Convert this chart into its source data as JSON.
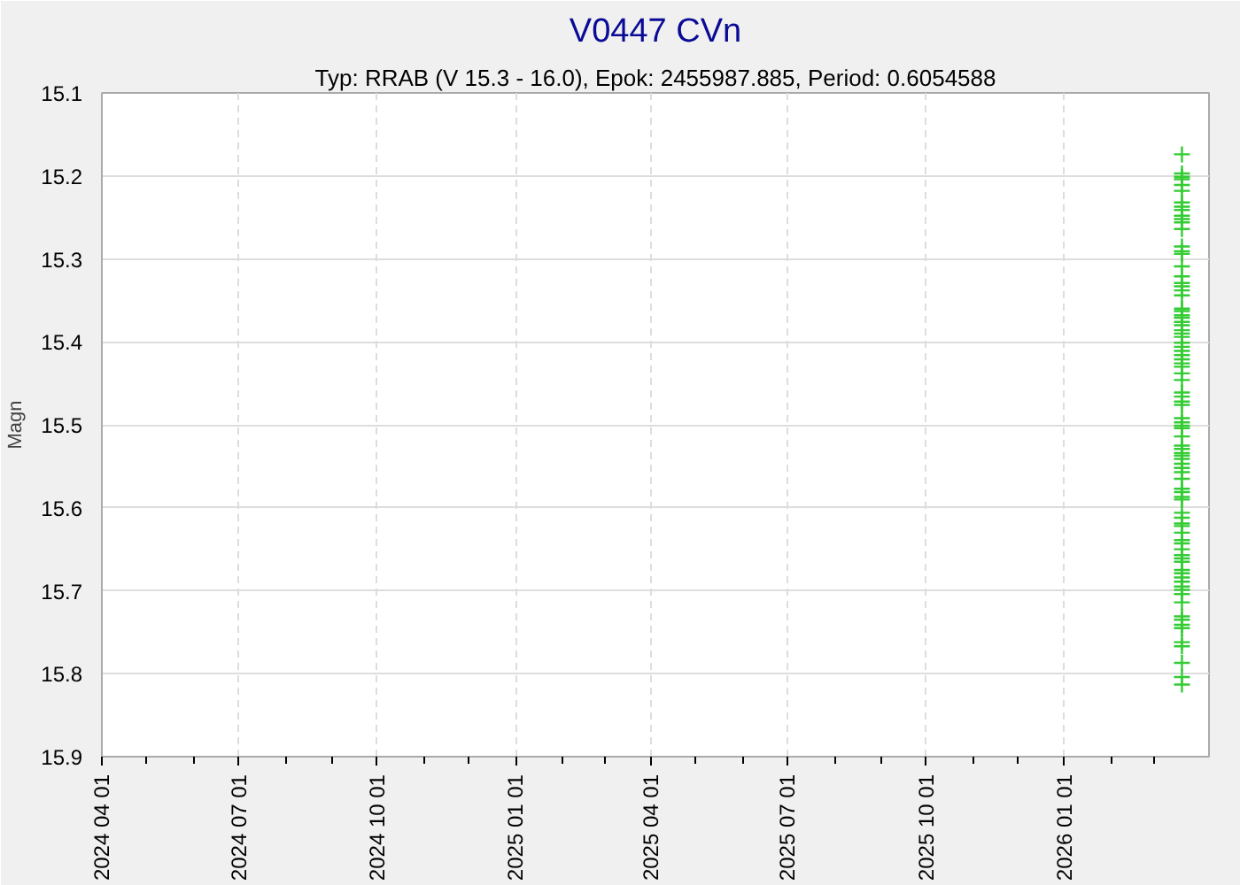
{
  "chart_data": {
    "type": "scatter",
    "title": "V0447 CVn",
    "subtitle": "Typ: RRAB (V 15.3 - 16.0), Epok: 2455987.885, Period: 0.6054588",
    "ylabel": "Magn",
    "marker": "cross",
    "grid": true,
    "xlim": [
      "2024-04-01",
      "2026-04-07"
    ],
    "xticks": [
      {
        "value": "2024-04-01",
        "label": "2024 04 01"
      },
      {
        "value": "2024-05-01",
        "label": null
      },
      {
        "value": "2024-06-01",
        "label": null
      },
      {
        "value": "2024-07-01",
        "label": "2024 07 01"
      },
      {
        "value": "2024-08-01",
        "label": null
      },
      {
        "value": "2024-09-01",
        "label": null
      },
      {
        "value": "2024-10-01",
        "label": "2024 10 01"
      },
      {
        "value": "2024-11-01",
        "label": null
      },
      {
        "value": "2024-12-01",
        "label": null
      },
      {
        "value": "2025-01-01",
        "label": "2025 01 01"
      },
      {
        "value": "2025-02-01",
        "label": null
      },
      {
        "value": "2025-03-01",
        "label": null
      },
      {
        "value": "2025-04-01",
        "label": "2025 04 01"
      },
      {
        "value": "2025-05-01",
        "label": null
      },
      {
        "value": "2025-06-01",
        "label": null
      },
      {
        "value": "2025-07-01",
        "label": "2025 07 01"
      },
      {
        "value": "2025-08-01",
        "label": null
      },
      {
        "value": "2025-09-01",
        "label": null
      },
      {
        "value": "2025-10-01",
        "label": "2025 10 01"
      },
      {
        "value": "2025-11-01",
        "label": null
      },
      {
        "value": "2025-12-01",
        "label": null
      },
      {
        "value": "2026-01-01",
        "label": "2026 01 01"
      },
      {
        "value": "2026-02-01",
        "label": null
      },
      {
        "value": "2026-03-01",
        "label": null
      }
    ],
    "ylim": [
      15.9,
      15.1
    ],
    "yticks": [
      15.1,
      15.2,
      15.3,
      15.4,
      15.5,
      15.6,
      15.7,
      15.8,
      15.9
    ],
    "series": [
      {
        "color": "#33cc33",
        "x": [
          "2026-03-20",
          "2026-03-20",
          "2026-03-20",
          "2026-03-20",
          "2026-03-20",
          "2026-03-20",
          "2026-03-20",
          "2026-03-20",
          "2026-03-20",
          "2026-03-20",
          "2026-03-20",
          "2026-03-20",
          "2026-03-20",
          "2026-03-20",
          "2026-03-20",
          "2026-03-20",
          "2026-03-20",
          "2026-03-20",
          "2026-03-20",
          "2026-03-20",
          "2026-03-20",
          "2026-03-20",
          "2026-03-20",
          "2026-03-20",
          "2026-03-20",
          "2026-03-20",
          "2026-03-20",
          "2026-03-20",
          "2026-03-20",
          "2026-03-20",
          "2026-03-20",
          "2026-03-20",
          "2026-03-20",
          "2026-03-20",
          "2026-03-20",
          "2026-03-20",
          "2026-03-20",
          "2026-03-20",
          "2026-03-20",
          "2026-03-20",
          "2026-03-20",
          "2026-03-20",
          "2026-03-20",
          "2026-03-20",
          "2026-03-20",
          "2026-03-20",
          "2026-03-20",
          "2026-03-20",
          "2026-03-20",
          "2026-03-20",
          "2026-03-20",
          "2026-03-20",
          "2026-03-20",
          "2026-03-20",
          "2026-03-20",
          "2026-03-20",
          "2026-03-20",
          "2026-03-20",
          "2026-03-20",
          "2026-03-20",
          "2026-03-20",
          "2026-03-20",
          "2026-03-20",
          "2026-03-20",
          "2026-03-20",
          "2026-03-20",
          "2026-03-20",
          "2026-03-20",
          "2026-03-20",
          "2026-03-20",
          "2026-03-20",
          "2026-03-20",
          "2026-03-20",
          "2026-03-20",
          "2026-03-20",
          "2026-03-20",
          "2026-03-20",
          "2026-03-20",
          "2026-03-20",
          "2026-03-20",
          "2026-03-20",
          "2026-03-20",
          "2026-03-20",
          "2026-03-20",
          "2026-03-20",
          "2026-03-20",
          "2026-03-20",
          "2026-03-20",
          "2026-03-20",
          "2026-03-20"
        ],
        "values": [
          15.174,
          15.197,
          15.201,
          15.204,
          15.211,
          15.218,
          15.232,
          15.237,
          15.241,
          15.248,
          15.252,
          15.256,
          15.264,
          15.285,
          15.291,
          15.294,
          15.309,
          15.321,
          15.329,
          15.333,
          15.338,
          15.344,
          15.36,
          15.363,
          15.368,
          15.371,
          15.376,
          15.38,
          15.386,
          15.39,
          15.394,
          15.401,
          15.406,
          15.411,
          15.416,
          15.421,
          15.426,
          15.43,
          15.438,
          15.446,
          15.461,
          15.466,
          15.472,
          15.476,
          15.492,
          15.497,
          15.501,
          15.504,
          15.514,
          15.525,
          15.529,
          15.534,
          15.537,
          15.541,
          15.547,
          15.552,
          15.557,
          15.565,
          15.577,
          15.581,
          15.587,
          15.59,
          15.606,
          15.612,
          15.619,
          15.622,
          15.63,
          15.639,
          15.643,
          15.65,
          15.657,
          15.661,
          15.665,
          15.675,
          15.679,
          15.684,
          15.689,
          15.695,
          15.699,
          15.704,
          15.714,
          15.731,
          15.735,
          15.741,
          15.745,
          15.762,
          15.767,
          15.787,
          15.804,
          15.813
        ]
      }
    ]
  }
}
